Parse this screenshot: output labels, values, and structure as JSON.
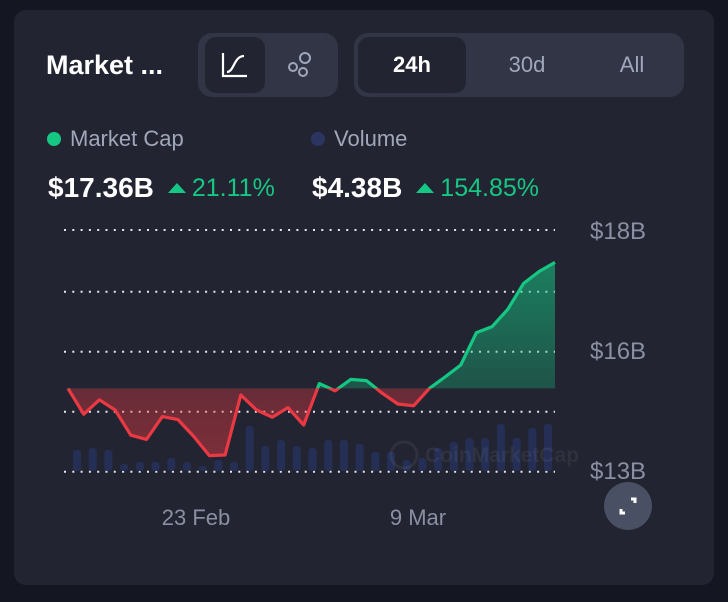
{
  "header": {
    "title": "Market ...",
    "view_toggle": [
      {
        "icon": "line-chart-icon",
        "active": true
      },
      {
        "icon": "bubbles-icon",
        "active": false
      }
    ],
    "ranges": [
      {
        "label": "24h",
        "active": true
      },
      {
        "label": "30d",
        "active": false
      },
      {
        "label": "All",
        "active": false
      }
    ]
  },
  "legend": {
    "market_cap": {
      "label": "Market Cap",
      "color": "#16c784"
    },
    "volume": {
      "label": "Volume",
      "color": "#2b3560"
    }
  },
  "stats": {
    "market_cap_value": "$17.36B",
    "market_cap_change": "21.11%",
    "volume_value": "$4.38B",
    "volume_change": "154.85%"
  },
  "watermark": "CoinMarketCap",
  "colors": {
    "up": "#16c784",
    "down": "#ea3943",
    "volume_bar": "#252f55"
  },
  "chart_data": {
    "type": "line",
    "y_tick_labels": [
      "$18B",
      "$16B",
      "$13B"
    ],
    "x_tick_labels": [
      "23 Feb",
      "9 Mar"
    ],
    "grid": true,
    "legend": "top",
    "series": [
      {
        "name": "Market Cap",
        "unit": "B USD",
        "baseline": 15.36,
        "values": [
          15.36,
          14.93,
          15.17,
          15.0,
          14.58,
          14.51,
          14.89,
          14.84,
          14.56,
          14.24,
          14.25,
          15.25,
          15.0,
          14.88,
          15.04,
          14.75,
          15.44,
          15.32,
          15.51,
          15.49,
          15.28,
          15.1,
          15.07,
          15.36,
          15.55,
          15.75,
          16.29,
          16.39,
          16.68,
          17.11,
          17.31,
          17.46
        ]
      },
      {
        "name": "Volume",
        "relative_values": [
          21,
          23,
          21,
          7,
          9,
          9,
          13,
          9,
          5,
          11,
          9,
          45,
          25,
          31,
          25,
          23,
          31,
          31,
          27,
          19,
          19,
          11,
          13,
          23,
          29,
          33,
          33,
          47,
          33,
          43,
          47
        ]
      }
    ]
  }
}
